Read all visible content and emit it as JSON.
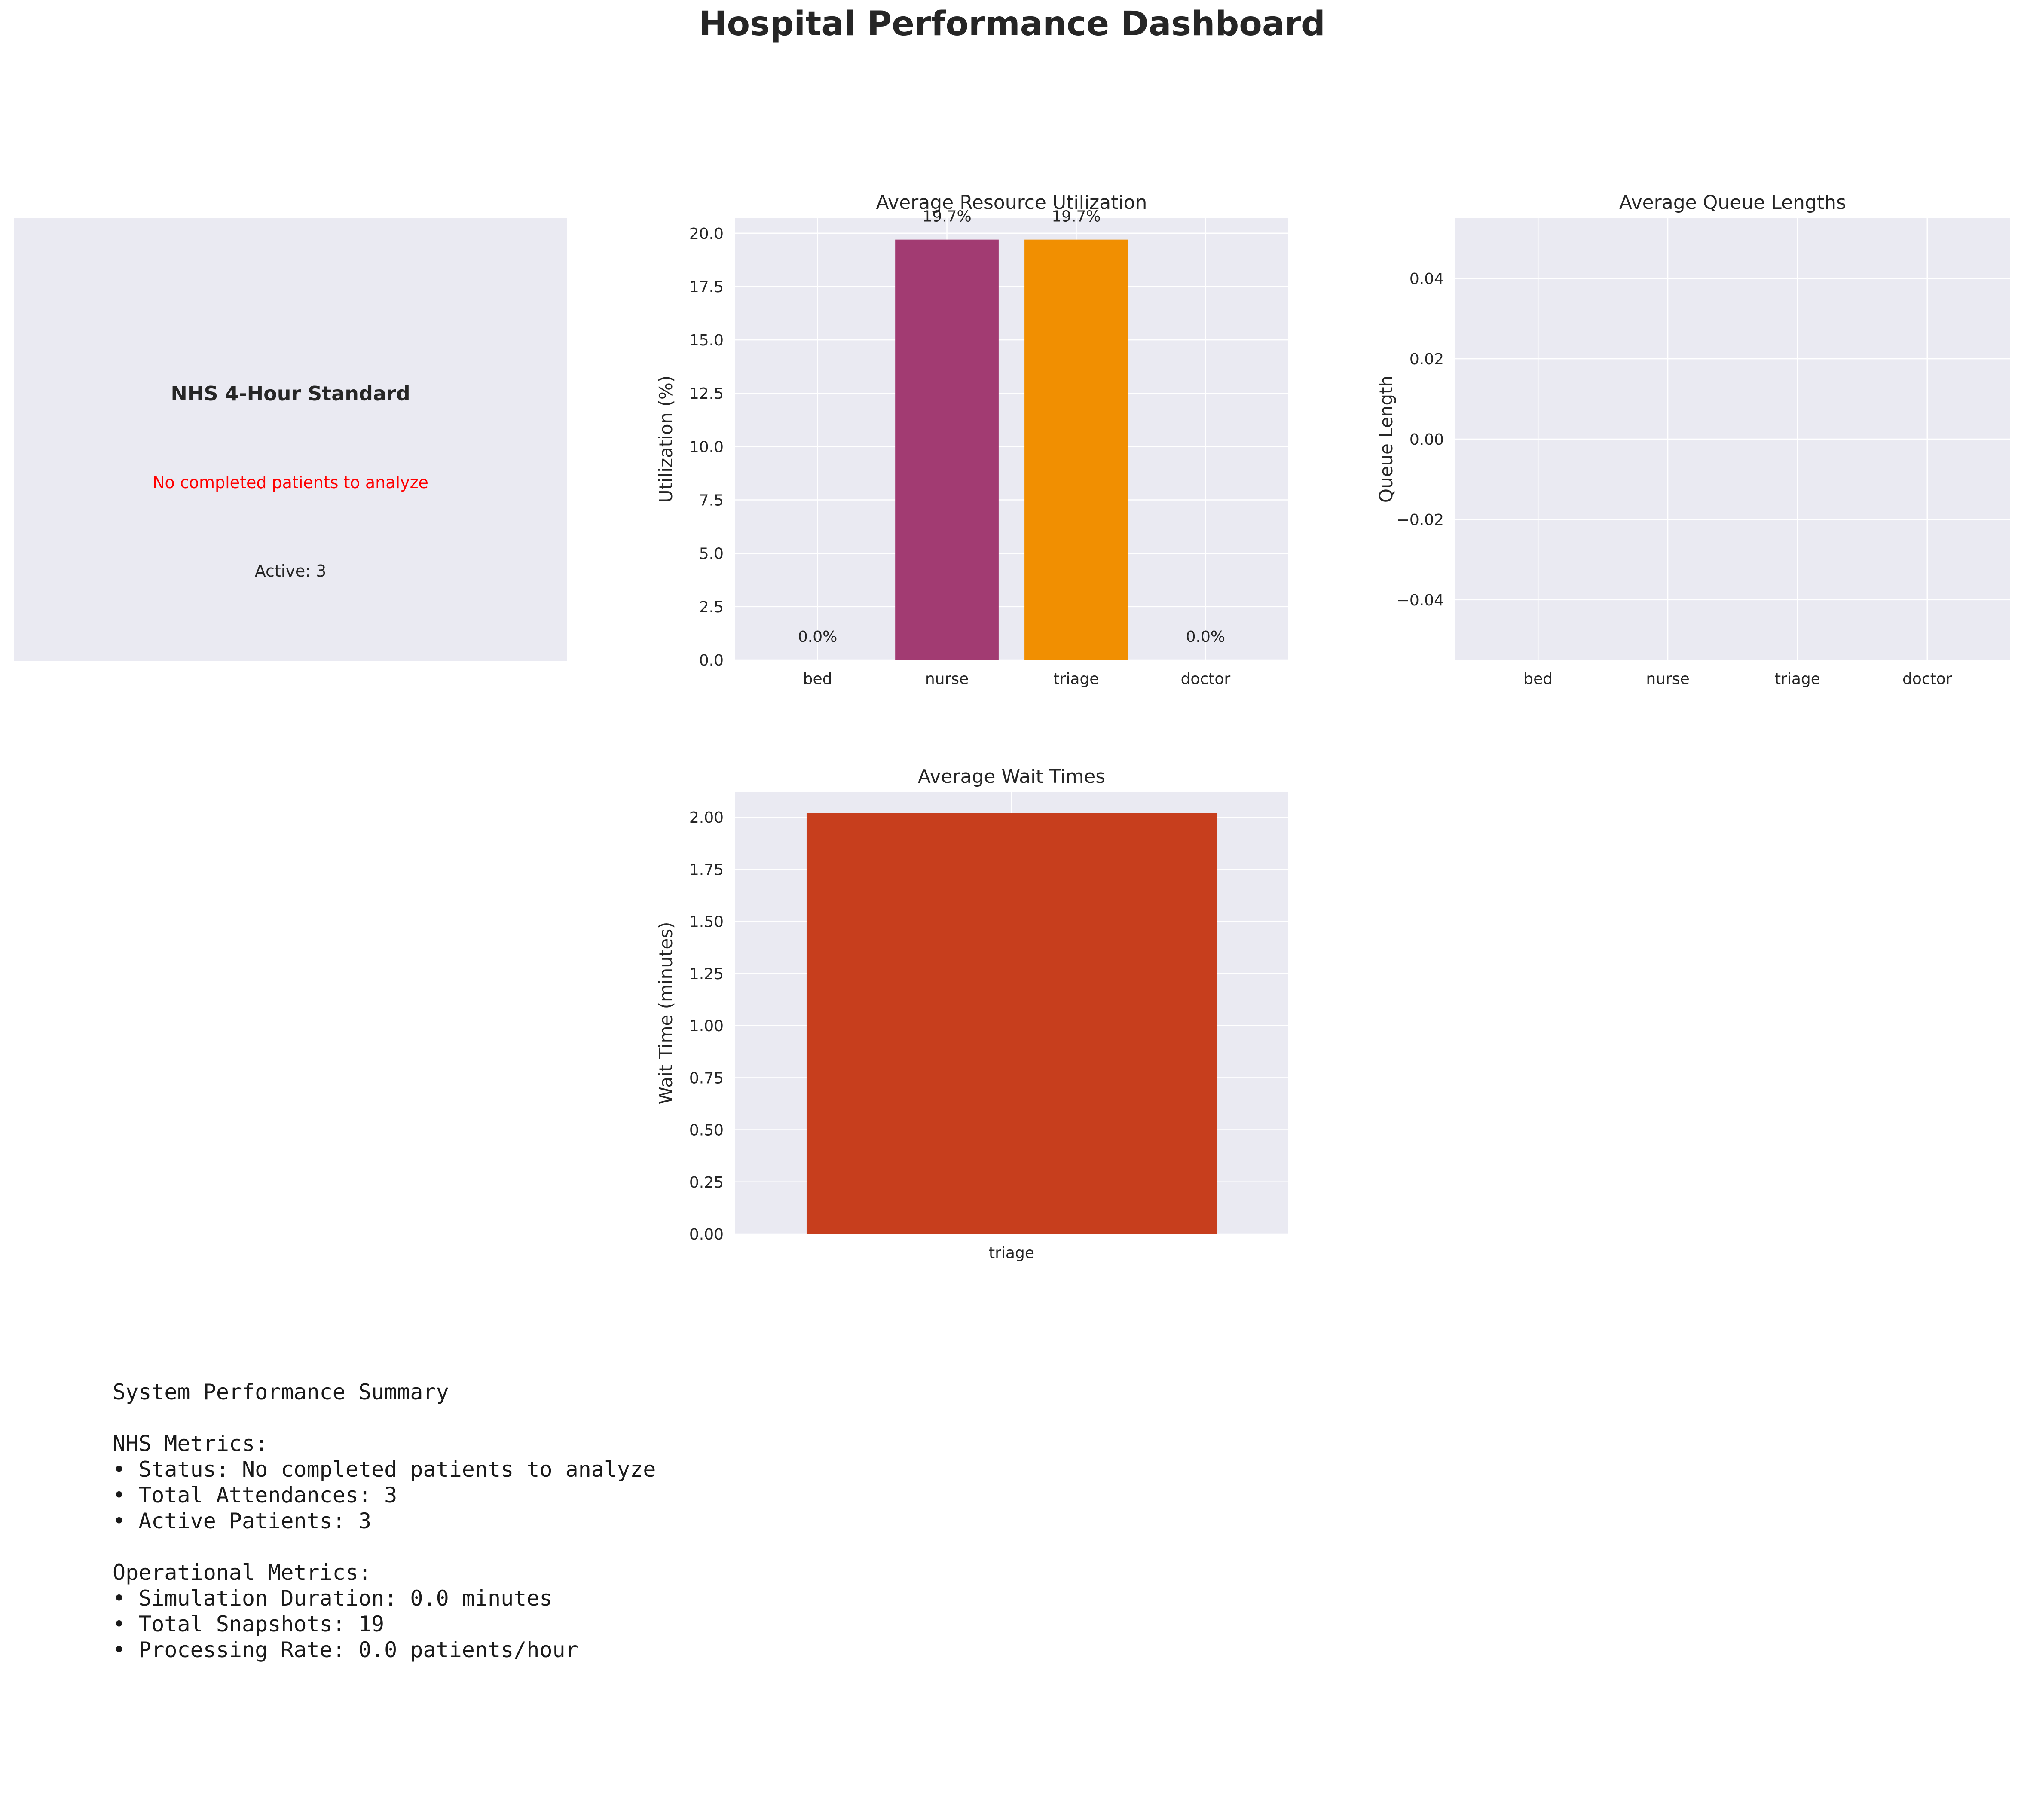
{
  "dashboard": {
    "title": "Hospital Performance Dashboard"
  },
  "nhs_panel": {
    "title": "NHS 4-Hour Standard",
    "status": "No completed patients to analyze",
    "active": "Active: 3",
    "status_color": "#ff0000"
  },
  "colors": {
    "panel_bg": "#eaeaf2",
    "grid": "#ffffff",
    "text": "#262626"
  },
  "chart_data": [
    {
      "type": "bar",
      "title": "Average Resource Utilization",
      "ylabel": "Utilization (%)",
      "xlabel": "",
      "categories": [
        "bed",
        "nurse",
        "triage",
        "doctor"
      ],
      "values": [
        0.0,
        19.7,
        19.7,
        0.0
      ],
      "data_labels": [
        "0.0%",
        "19.7%",
        "19.7%",
        "0.0%"
      ],
      "colors": [
        "#2e86ab",
        "#a23b72",
        "#f18f01",
        "#c73e1d"
      ],
      "ylim": [
        0,
        20.7
      ],
      "yticks": [
        "0.0",
        "2.5",
        "5.0",
        "7.5",
        "10.0",
        "12.5",
        "15.0",
        "17.5",
        "20.0"
      ],
      "grid": true
    },
    {
      "type": "bar",
      "title": "Average Queue Lengths",
      "ylabel": "Queue Length",
      "xlabel": "",
      "categories": [
        "bed",
        "nurse",
        "triage",
        "doctor"
      ],
      "values": [
        0,
        0,
        0,
        0
      ],
      "ylim": [
        -0.055,
        0.055
      ],
      "yticks": [
        "−0.04",
        "−0.02",
        "0.00",
        "0.02",
        "0.04"
      ],
      "grid": true
    },
    {
      "type": "bar",
      "title": "Average Wait Times",
      "ylabel": "Wait Time (minutes)",
      "xlabel": "",
      "categories": [
        "triage"
      ],
      "values": [
        2.02
      ],
      "colors": [
        "#c73e1d"
      ],
      "ylim": [
        0,
        2.12
      ],
      "yticks": [
        "0.00",
        "0.25",
        "0.50",
        "0.75",
        "1.00",
        "1.25",
        "1.50",
        "1.75",
        "2.00"
      ],
      "grid": true
    }
  ],
  "summary": {
    "lines": [
      "System Performance Summary",
      "",
      "NHS Metrics:",
      "• Status: No completed patients to analyze",
      "• Total Attendances: 3",
      "• Active Patients: 3",
      "",
      "Operational Metrics:",
      "• Simulation Duration: 0.0 minutes",
      "• Total Snapshots: 19",
      "• Processing Rate: 0.0 patients/hour"
    ]
  }
}
